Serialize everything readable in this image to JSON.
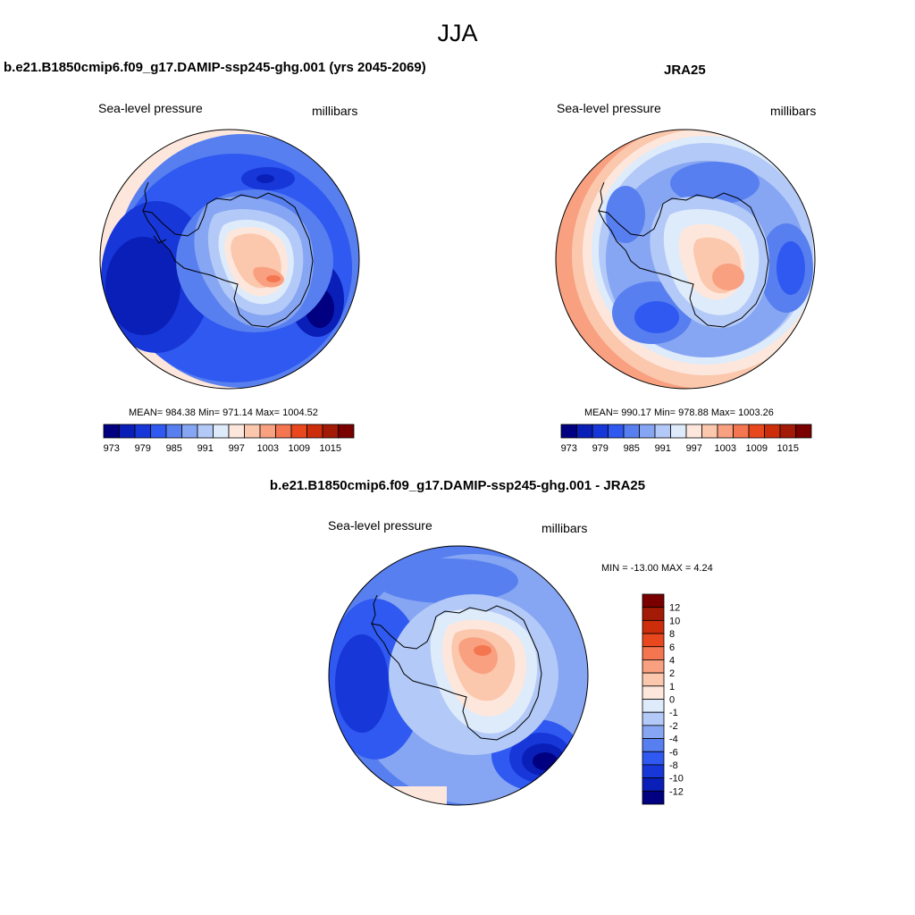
{
  "title": "JJA",
  "panels": [
    {
      "id": "model",
      "title": "b.e21.B1850cmip6.f09_g17.DAMIP-ssp245-ghg.001 (yrs 2045-2069)",
      "left_label": "Sea-level pressure",
      "right_label": "millibars",
      "stats": "MEAN= 984.38  Min= 971.14  Max= 1004.52"
    },
    {
      "id": "obs",
      "title": "JRA25",
      "left_label": "Sea-level pressure",
      "right_label": "millibars",
      "stats": "MEAN= 990.17  Min= 978.88  Max= 1003.26"
    },
    {
      "id": "diff",
      "title": "b.e21.B1850cmip6.f09_g17.DAMIP-ssp245-ghg.001 - JRA25",
      "left_label": "Sea-level pressure",
      "right_label": "millibars",
      "stats": "MIN = -13.00 MAX =   4.24"
    }
  ],
  "chart_data": [
    {
      "type": "heatmap",
      "projection": "south polar stereographic",
      "variable": "Sea-level pressure",
      "units": "millibars",
      "stats": {
        "mean": 984.38,
        "min": 971.14,
        "max": 1004.52
      },
      "colorbar": {
        "orientation": "horizontal",
        "levels": [
          973,
          976,
          979,
          982,
          985,
          988,
          991,
          994,
          997,
          1000,
          1003,
          1006,
          1009,
          1012,
          1015
        ],
        "tick_labels": [
          "973",
          "979",
          "985",
          "991",
          "997",
          "1003",
          "1009",
          "1015"
        ]
      }
    },
    {
      "type": "heatmap",
      "projection": "south polar stereographic",
      "variable": "Sea-level pressure",
      "units": "millibars",
      "stats": {
        "mean": 990.17,
        "min": 978.88,
        "max": 1003.26
      },
      "colorbar": {
        "orientation": "horizontal",
        "levels": [
          973,
          976,
          979,
          982,
          985,
          988,
          991,
          994,
          997,
          1000,
          1003,
          1006,
          1009,
          1012,
          1015
        ],
        "tick_labels": [
          "973",
          "979",
          "985",
          "991",
          "997",
          "1003",
          "1009",
          "1015"
        ]
      }
    },
    {
      "type": "heatmap",
      "projection": "south polar stereographic",
      "variable": "Sea-level pressure",
      "units": "millibars",
      "stats": {
        "min": -13.0,
        "max": 4.24
      },
      "colorbar": {
        "orientation": "vertical",
        "levels": [
          -12,
          -10,
          -8,
          -6,
          -4,
          -2,
          -1,
          0,
          1,
          2,
          4,
          6,
          8,
          10,
          12
        ],
        "tick_labels": [
          "12",
          "10",
          "8",
          "6",
          "4",
          "2",
          "1",
          "0",
          "-1",
          "-2",
          "-4",
          "-6",
          "-8",
          "-10",
          "-12"
        ]
      }
    }
  ],
  "colors": {
    "palette": [
      "#000080",
      "#0a1fb8",
      "#1737d8",
      "#2f59f0",
      "#577fef",
      "#86a5f2",
      "#b3c9f7",
      "#deebfb",
      "#fde7dc",
      "#fbc7ad",
      "#f8a080",
      "#f47650",
      "#e9481f",
      "#cc2e0c",
      "#a31a06",
      "#7a0000"
    ]
  }
}
